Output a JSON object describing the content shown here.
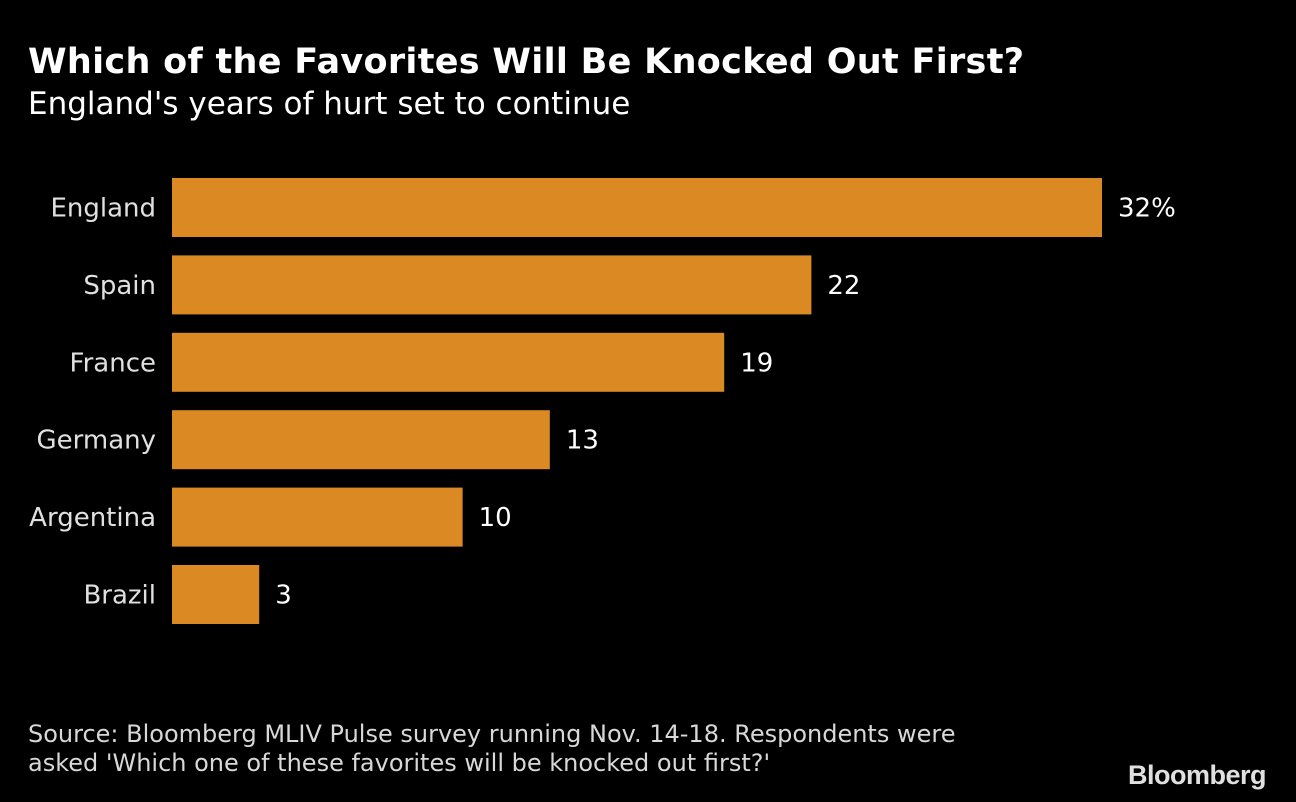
{
  "chart_data": {
    "type": "bar",
    "orientation": "horizontal",
    "title": "Which of the Favorites Will Be Knocked Out First?",
    "subtitle": "England's years of hurt set to continue",
    "categories": [
      "England",
      "Spain",
      "France",
      "Germany",
      "Argentina",
      "Brazil"
    ],
    "values": [
      32,
      22,
      19,
      13,
      10,
      3
    ],
    "value_labels": [
      "32%",
      "22",
      "19",
      "13",
      "10",
      "3"
    ],
    "unit": "%",
    "xlim": [
      0,
      32
    ],
    "grid": false,
    "bar_color": "#DB8A23",
    "xlabel": "",
    "ylabel": ""
  },
  "source": "Source: Bloomberg MLIV Pulse survey running Nov. 14-18. Respondents were asked 'Which one of these favorites will be knocked out first?'",
  "logo": "Bloomberg"
}
